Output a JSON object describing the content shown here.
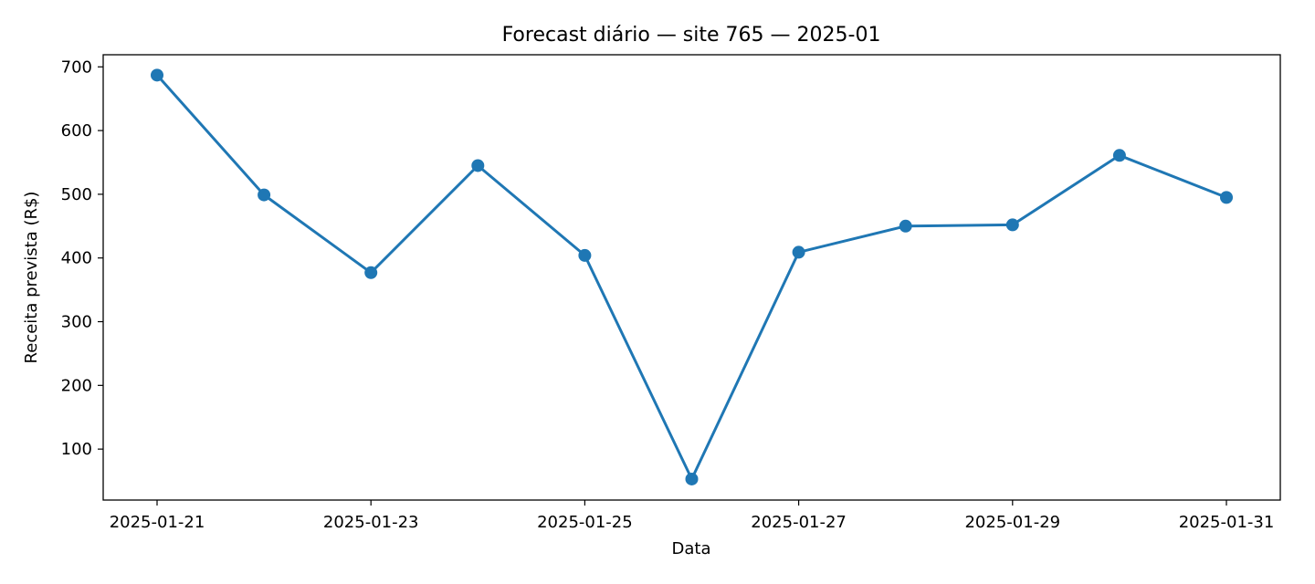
{
  "chart_data": {
    "type": "line",
    "title": "Forecast diário — site 765 — 2025-01",
    "xlabel": "Data",
    "ylabel": "Receita prevista (R$)",
    "x": [
      "2025-01-21",
      "2025-01-22",
      "2025-01-23",
      "2025-01-24",
      "2025-01-25",
      "2025-01-26",
      "2025-01-27",
      "2025-01-28",
      "2025-01-29",
      "2025-01-30",
      "2025-01-31"
    ],
    "series": [
      {
        "values": [
          687,
          499,
          377,
          545,
          404,
          53,
          409,
          450,
          452,
          561,
          495
        ],
        "color": "#1f77b4"
      }
    ],
    "x_tick_labels": [
      "2025-01-21",
      "2025-01-23",
      "2025-01-25",
      "2025-01-27",
      "2025-01-29",
      "2025-01-31"
    ],
    "y_ticks": [
      100,
      200,
      300,
      400,
      500,
      600,
      700
    ],
    "ylim": [
      20,
      719
    ],
    "grid": false,
    "markers": true
  }
}
